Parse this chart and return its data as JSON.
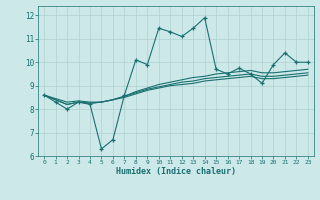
{
  "xlabel": "Humidex (Indice chaleur)",
  "background_color": "#cce8e8",
  "grid_color": "#b0d0d0",
  "line_color": "#1a7070",
  "xlim": [
    -0.5,
    23.5
  ],
  "ylim": [
    6,
    12.4
  ],
  "yticks": [
    6,
    7,
    8,
    9,
    10,
    11,
    12
  ],
  "xticks": [
    0,
    1,
    2,
    3,
    4,
    5,
    6,
    7,
    8,
    9,
    10,
    11,
    12,
    13,
    14,
    15,
    16,
    17,
    18,
    19,
    20,
    21,
    22,
    23
  ],
  "main_line_x": [
    0,
    1,
    2,
    3,
    4,
    5,
    6,
    7,
    8,
    9,
    10,
    11,
    12,
    13,
    14,
    15,
    16,
    17,
    18,
    19,
    20,
    21,
    22,
    23
  ],
  "main_line_y": [
    8.6,
    8.3,
    8.0,
    8.3,
    8.2,
    6.3,
    6.7,
    8.6,
    10.1,
    9.9,
    11.45,
    11.3,
    11.1,
    11.45,
    11.9,
    9.7,
    9.5,
    9.75,
    9.5,
    9.1,
    9.9,
    10.4,
    10.0,
    10.0
  ],
  "line2_y": [
    8.6,
    8.45,
    8.3,
    8.35,
    8.3,
    8.3,
    8.4,
    8.55,
    8.75,
    8.9,
    9.05,
    9.15,
    9.25,
    9.35,
    9.4,
    9.5,
    9.55,
    9.6,
    9.65,
    9.55,
    9.55,
    9.6,
    9.65,
    9.7
  ],
  "line3_y": [
    8.6,
    8.4,
    8.2,
    8.3,
    8.25,
    8.3,
    8.4,
    8.55,
    8.7,
    8.85,
    8.95,
    9.05,
    9.15,
    9.2,
    9.3,
    9.35,
    9.4,
    9.45,
    9.5,
    9.4,
    9.4,
    9.45,
    9.5,
    9.55
  ],
  "line4_y": [
    8.6,
    8.4,
    8.2,
    8.3,
    8.25,
    8.3,
    8.4,
    8.5,
    8.65,
    8.8,
    8.9,
    9.0,
    9.05,
    9.1,
    9.2,
    9.25,
    9.3,
    9.35,
    9.4,
    9.3,
    9.3,
    9.35,
    9.4,
    9.45
  ]
}
